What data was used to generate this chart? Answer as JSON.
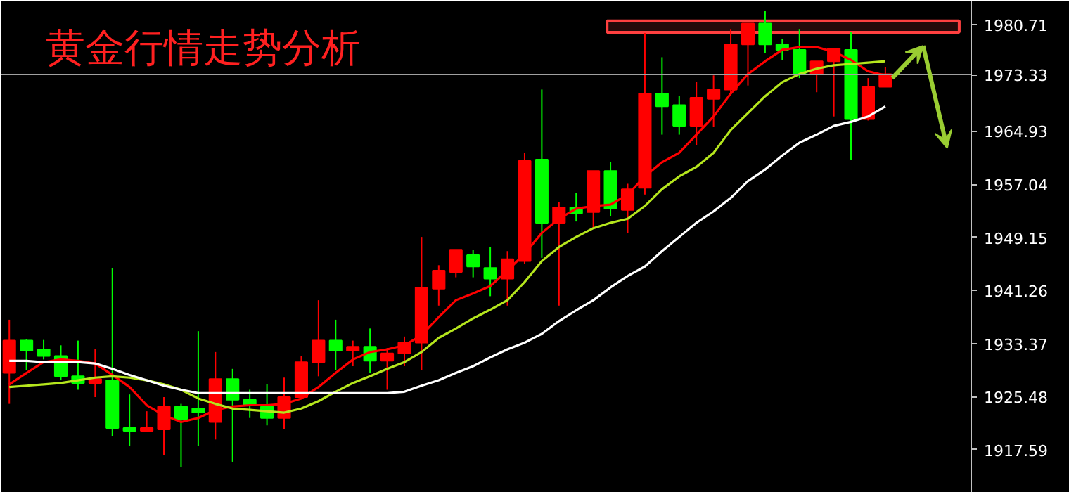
{
  "chart_data": {
    "type": "candlestick",
    "title": "黄金行情走势分析",
    "categories": [
      null,
      null,
      null,
      null,
      null,
      null,
      null,
      null,
      null,
      null,
      null,
      null,
      null,
      null,
      null,
      null,
      null,
      null,
      null,
      null,
      null,
      null,
      null,
      null,
      null,
      null,
      null,
      null,
      null,
      null,
      null,
      null,
      null,
      null,
      null,
      null,
      null,
      null,
      null,
      null,
      null,
      null,
      null,
      null,
      null,
      null,
      null,
      null,
      null,
      null,
      null,
      null
    ],
    "ohlc": [
      [
        1929.0,
        1936.9,
        1924.4,
        1933.8
      ],
      [
        1933.8,
        1934.0,
        1929.4,
        1932.3
      ],
      [
        1932.5,
        1933.9,
        1931.0,
        1931.5
      ],
      [
        1931.5,
        1933.1,
        1927.9,
        1928.5
      ],
      [
        1928.5,
        1933.8,
        1926.5,
        1927.5
      ],
      [
        1927.5,
        1932.5,
        1925.4,
        1928.1
      ],
      [
        1927.9,
        1944.6,
        1919.6,
        1920.8
      ],
      [
        1920.8,
        1925.8,
        1918.1,
        1920.4
      ],
      [
        1920.4,
        1923.3,
        1920.2,
        1920.8
      ],
      [
        1920.6,
        1925.4,
        1916.8,
        1924.0
      ],
      [
        1924.0,
        1924.4,
        1915.0,
        1922.1
      ],
      [
        1923.7,
        1935.2,
        1918.1,
        1923.1
      ],
      [
        1921.7,
        1932.1,
        1919.1,
        1928.1
      ],
      [
        1928.1,
        1929.6,
        1915.8,
        1925.0
      ],
      [
        1925.0,
        1926.5,
        1922.3,
        1924.2
      ],
      [
        1924.0,
        1927.3,
        1921.2,
        1922.3
      ],
      [
        1922.3,
        1928.3,
        1920.6,
        1925.4
      ],
      [
        1925.4,
        1931.5,
        1925.2,
        1930.6
      ],
      [
        1930.6,
        1939.8,
        1928.5,
        1933.8
      ],
      [
        1933.8,
        1936.9,
        1929.4,
        1932.3
      ],
      [
        1932.3,
        1933.8,
        1930.0,
        1932.9
      ],
      [
        1932.9,
        1935.6,
        1929.0,
        1930.8
      ],
      [
        1930.8,
        1932.7,
        1926.5,
        1931.9
      ],
      [
        1931.9,
        1934.4,
        1930.0,
        1933.5
      ],
      [
        1933.5,
        1949.2,
        1929.4,
        1941.7
      ],
      [
        1941.5,
        1945.0,
        1939.0,
        1944.2
      ],
      [
        1944.0,
        1947.3,
        1943.2,
        1947.3
      ],
      [
        1946.5,
        1947.3,
        1943.2,
        1944.8
      ],
      [
        1944.6,
        1947.7,
        1940.4,
        1943.0
      ],
      [
        1943.0,
        1947.1,
        1939.0,
        1945.9
      ],
      [
        1945.6,
        1961.7,
        1945.2,
        1960.5
      ],
      [
        1960.7,
        1971.1,
        1946.1,
        1951.3
      ],
      [
        1951.3,
        1954.4,
        1939.0,
        1953.6
      ],
      [
        1953.6,
        1955.7,
        1951.5,
        1952.7
      ],
      [
        1952.9,
        1959.0,
        1950.5,
        1959.0
      ],
      [
        1959.0,
        1960.3,
        1952.3,
        1953.4
      ],
      [
        1953.2,
        1957.1,
        1949.8,
        1956.3
      ],
      [
        1956.5,
        1979.5,
        1955.5,
        1970.5
      ],
      [
        1970.5,
        1975.9,
        1964.4,
        1968.6
      ],
      [
        1968.8,
        1970.1,
        1964.4,
        1965.7
      ],
      [
        1965.7,
        1972.2,
        1962.8,
        1969.9
      ],
      [
        1969.7,
        1973.2,
        1965.5,
        1971.1
      ],
      [
        1971.1,
        1980.1,
        1970.3,
        1977.8
      ],
      [
        1977.8,
        1980.9,
        1971.7,
        1980.9
      ],
      [
        1980.9,
        1982.8,
        1976.5,
        1977.8
      ],
      [
        1977.8,
        1978.6,
        1975.5,
        1977.0
      ],
      [
        1977.0,
        1980.1,
        1972.8,
        1973.4
      ],
      [
        1973.4,
        1975.3,
        1970.7,
        1975.3
      ],
      [
        1975.3,
        1977.2,
        1967.1,
        1977.2
      ],
      [
        1977.0,
        1979.7,
        1960.7,
        1966.7
      ],
      [
        1966.7,
        1972.8,
        1966.5,
        1971.5
      ],
      [
        1971.5,
        1974.4,
        1971.5,
        1973.4
      ]
    ],
    "colors": [
      "#ff0000",
      "#00ff00",
      "#00ff00",
      "#00ff00",
      "#00ff00",
      "#ff0000",
      "#00ff00",
      "#00ff00",
      "#ff0000",
      "#ff0000",
      "#00ff00",
      "#00ff00",
      "#ff0000",
      "#00ff00",
      "#00ff00",
      "#00ff00",
      "#ff0000",
      "#ff0000",
      "#ff0000",
      "#00ff00",
      "#ff0000",
      "#00ff00",
      "#ff0000",
      "#ff0000",
      "#ff0000",
      "#ff0000",
      "#ff0000",
      "#00ff00",
      "#00ff00",
      "#ff0000",
      "#ff0000",
      "#00ff00",
      "#ff0000",
      "#00ff00",
      "#ff0000",
      "#00ff00",
      "#ff0000",
      "#ff0000",
      "#00ff00",
      "#00ff00",
      "#ff0000",
      "#ff0000",
      "#ff0000",
      "#ff0000",
      "#00ff00",
      "#00ff00",
      "#00ff00",
      "#ff0000",
      "#ff0000",
      "#00ff00",
      "#ff0000",
      "#ff0000"
    ],
    "series": [
      {
        "type": "line",
        "color": "#ff0000",
        "values": [
          1927.3,
          1929.0,
          1930.6,
          1931.0,
          1930.8,
          1930.4,
          1928.7,
          1926.9,
          1924.2,
          1922.7,
          1921.7,
          1922.3,
          1923.5,
          1924.0,
          1924.2,
          1924.2,
          1924.4,
          1925.2,
          1926.9,
          1929.0,
          1931.0,
          1932.1,
          1932.5,
          1933.1,
          1934.6,
          1937.3,
          1939.8,
          1940.8,
          1941.9,
          1944.2,
          1946.7,
          1949.8,
          1951.9,
          1953.4,
          1953.8,
          1954.0,
          1955.5,
          1958.2,
          1960.3,
          1961.7,
          1964.4,
          1967.1,
          1970.5,
          1973.4,
          1975.3,
          1977.0,
          1977.4,
          1977.4,
          1976.7,
          1975.5,
          1973.8,
          1973.2
        ]
      },
      {
        "type": "line",
        "color": "#b5e61d",
        "values": [
          1926.9,
          1927.1,
          1927.3,
          1927.5,
          1927.9,
          1928.3,
          1928.5,
          1928.3,
          1927.9,
          1927.3,
          1926.5,
          1925.2,
          1924.4,
          1923.7,
          1923.5,
          1923.3,
          1923.1,
          1923.7,
          1924.8,
          1926.2,
          1927.5,
          1928.5,
          1929.6,
          1930.6,
          1932.1,
          1934.2,
          1935.6,
          1937.1,
          1938.4,
          1939.8,
          1942.5,
          1945.6,
          1947.7,
          1949.2,
          1950.5,
          1951.3,
          1951.9,
          1953.8,
          1956.3,
          1958.2,
          1959.6,
          1961.7,
          1965.1,
          1967.6,
          1970.1,
          1972.2,
          1973.4,
          1974.2,
          1974.7,
          1974.9,
          1975.1,
          1975.3
        ]
      },
      {
        "type": "line",
        "color": "#ffffff",
        "values": [
          1930.8,
          1930.8,
          1930.6,
          1930.6,
          1930.6,
          1930.4,
          1929.6,
          1928.7,
          1927.9,
          1927.1,
          1926.5,
          1926.0,
          1926.0,
          1926.0,
          1926.0,
          1926.0,
          1926.0,
          1926.0,
          1926.0,
          1926.0,
          1926.0,
          1926.0,
          1926.0,
          1926.2,
          1927.1,
          1927.9,
          1929.0,
          1930.0,
          1931.3,
          1932.5,
          1933.5,
          1934.8,
          1936.7,
          1938.3,
          1939.8,
          1941.7,
          1943.4,
          1944.8,
          1947.1,
          1949.2,
          1951.3,
          1953.0,
          1955.0,
          1957.5,
          1959.2,
          1961.3,
          1963.2,
          1964.4,
          1965.7,
          1966.3,
          1967.1,
          1968.6
        ]
      }
    ],
    "ylim": [
      1911.2,
      1984.3
    ],
    "yticks": [
      1917.59,
      1925.48,
      1933.37,
      1941.26,
      1949.15,
      1957.04,
      1964.93,
      1973.33,
      1980.71
    ],
    "ref_lines": [
      {
        "axis": "y",
        "value": 1973.33,
        "color": "#a0a0a0"
      }
    ],
    "bands": [
      {
        "axis": "y",
        "from": 1979.6,
        "to": 1981.3,
        "color": "#ff4040"
      }
    ],
    "tick_labels": "y",
    "grid": false
  }
}
